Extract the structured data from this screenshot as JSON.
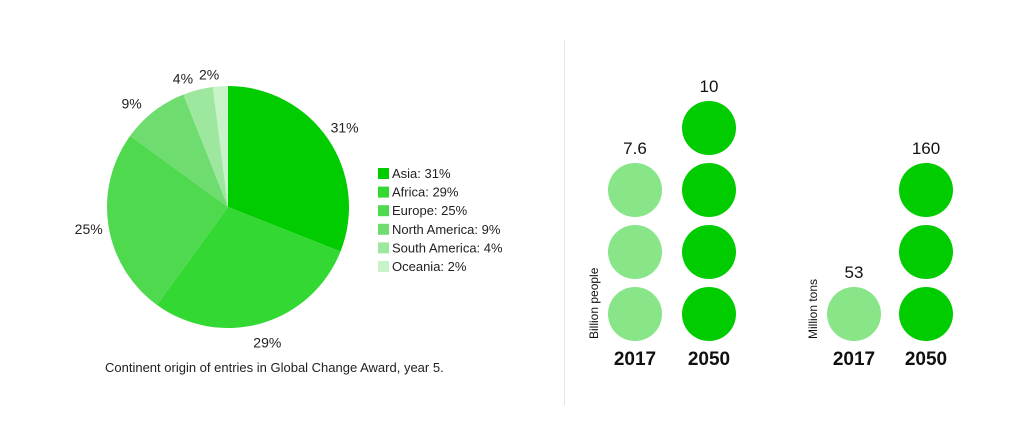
{
  "colors": {
    "dark_green": "#00cc00",
    "light_green": "#88e588",
    "pie": [
      "#00cc00",
      "#33d833",
      "#4fd94f",
      "#6fdc6f",
      "#9ee79e",
      "#c8f2c8"
    ]
  },
  "chart_data": [
    {
      "type": "pie",
      "title": "",
      "categories": [
        "Asia",
        "Africa",
        "Europe",
        "North America",
        "South America",
        "Oceania"
      ],
      "values": [
        31,
        29,
        25,
        9,
        4,
        2
      ],
      "slice_labels": [
        "31%",
        "29%",
        "25%",
        "9%",
        "4%",
        "2%"
      ],
      "legend_labels": [
        "Asia: 31%",
        "Africa: 29%",
        "Europe: 25%",
        "North America: 9%",
        "South America: 4%",
        "Oceania: 2%"
      ],
      "legend_position": "right",
      "caption": "Continent origin of entries in Global Change Award, year 5."
    },
    {
      "type": "bar",
      "ylabel": "Billion people",
      "categories": [
        "2017",
        "2050"
      ],
      "values": [
        7.6,
        10
      ],
      "value_labels": [
        "7.6",
        "10"
      ],
      "circles": [
        3,
        4
      ],
      "colors": [
        "#88e588",
        "#00cc00"
      ]
    },
    {
      "type": "bar",
      "ylabel": "Million tons",
      "categories": [
        "2017",
        "2050"
      ],
      "values": [
        53,
        160
      ],
      "value_labels": [
        "53",
        "160"
      ],
      "circles": [
        1,
        3
      ],
      "colors": [
        "#88e588",
        "#00cc00"
      ]
    }
  ]
}
